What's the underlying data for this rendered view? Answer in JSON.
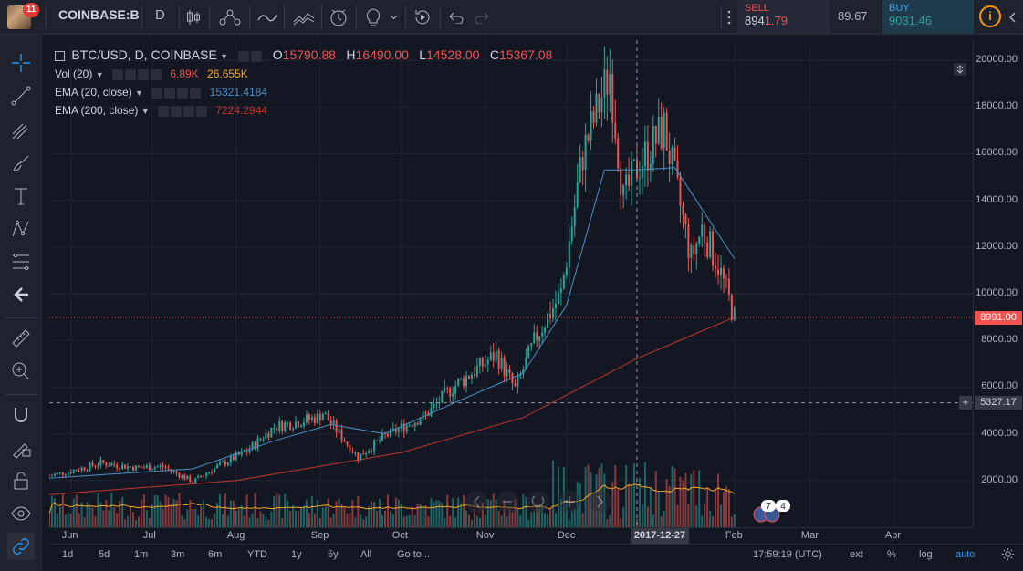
{
  "toolbar": {
    "notification_count": "11",
    "symbol": "COINBASE:B",
    "interval": "D",
    "trade": {
      "sell_label": "SELL",
      "sell_price_main": "894",
      "sell_price_tail": "1.79",
      "spread": "89.67",
      "buy_label": "BUY",
      "buy_price": "9031.46"
    },
    "info_icon": "i"
  },
  "left_tools": [
    "crosshair-icon",
    "trendline-icon",
    "pitchfork-icon",
    "brush-icon",
    "text-icon",
    "pattern-icon",
    "fib-icon",
    "back-arrow-icon",
    "ruler-icon",
    "zoom-icon",
    "magnet-icon",
    "lock-draw-icon",
    "lock-icon",
    "eye-icon",
    "link-icon"
  ],
  "legend": {
    "title": "BTC/USD, D, COINBASE",
    "ohlc": {
      "o_label": "O",
      "o": "15790.88",
      "h_label": "H",
      "h": "16490.00",
      "l_label": "L",
      "l": "14528.00",
      "c_label": "C",
      "c": "15367.08"
    },
    "vol": {
      "label": "Vol (20)",
      "v1": "6.89K",
      "v2": "26.655K"
    },
    "ema20": {
      "label": "EMA (20, close)",
      "value": "15321.4184"
    },
    "ema200": {
      "label": "EMA (200, close)",
      "value": "7224.2944"
    }
  },
  "price_axis": {
    "ticks": [
      "20000.00",
      "18000.00",
      "16000.00",
      "14000.00",
      "12000.00",
      "10000.00",
      "8000.00",
      "6000.00",
      "4000.00",
      "2000.00"
    ],
    "last_price": "8991.00",
    "crosshair_price": "5327.17",
    "plus": "+"
  },
  "time_axis": {
    "ticks": [
      "Jun",
      "Jul",
      "Aug",
      "Sep",
      "Oct",
      "Nov",
      "Dec",
      "Feb",
      "Mar",
      "Apr"
    ],
    "crosshair_date": "2017-12-27"
  },
  "events": {
    "badge_a": "7",
    "badge_b": "4"
  },
  "bottom_bar": {
    "ranges": [
      "1d",
      "5d",
      "1m",
      "3m",
      "6m",
      "YTD",
      "1y",
      "5y",
      "All"
    ],
    "goto": "Go to...",
    "clock": "17:59:19 (UTC)",
    "ext": "ext",
    "percent": "%",
    "log": "log",
    "auto": "auto"
  },
  "colors": {
    "up": "#26a69a",
    "down": "#ef5350",
    "ema20": "#4a90c8",
    "ema200": "#c0392b",
    "vol_ma": "#f5a623",
    "background": "#131722"
  },
  "chart_data": {
    "type": "candlestick",
    "symbol": "BTC/USD",
    "y_range": [
      0,
      21000
    ],
    "y_ticks": [
      2000,
      4000,
      6000,
      8000,
      10000,
      12000,
      14000,
      16000,
      18000,
      20000
    ],
    "x_range": [
      "2017-05-24",
      "2018-04-30"
    ],
    "x_ticks": [
      "Jun",
      "Jul",
      "Aug",
      "Sep",
      "Oct",
      "Nov",
      "Dec",
      "Feb",
      "Mar",
      "Apr"
    ],
    "last_close": 8991,
    "crosshair": {
      "date": "2017-12-27",
      "price": 5327.17
    },
    "close_path": [
      [
        "2017-05-24",
        2200
      ],
      [
        "2017-06-01",
        2400
      ],
      [
        "2017-06-12",
        2750
      ],
      [
        "2017-06-25",
        2550
      ],
      [
        "2017-07-05",
        2600
      ],
      [
        "2017-07-16",
        1950
      ],
      [
        "2017-07-25",
        2600
      ],
      [
        "2017-08-05",
        3250
      ],
      [
        "2017-08-15",
        4300
      ],
      [
        "2017-08-31",
        4700
      ],
      [
        "2017-09-02",
        4900
      ],
      [
        "2017-09-15",
        3000
      ],
      [
        "2017-09-25",
        3900
      ],
      [
        "2017-10-10",
        4800
      ],
      [
        "2017-10-20",
        6000
      ],
      [
        "2017-11-05",
        7400
      ],
      [
        "2017-11-12",
        5900
      ],
      [
        "2017-11-20",
        8200
      ],
      [
        "2017-11-29",
        10000
      ],
      [
        "2017-12-07",
        16000
      ],
      [
        "2017-12-17",
        19500
      ],
      [
        "2017-12-22",
        14000
      ],
      [
        "2017-12-27",
        15400
      ],
      [
        "2018-01-06",
        17100
      ],
      [
        "2018-01-16",
        11500
      ],
      [
        "2018-01-20",
        12800
      ],
      [
        "2018-01-26",
        11200
      ],
      [
        "2018-02-01",
        8991
      ]
    ],
    "ema20_path": [
      [
        "2017-05-24",
        2100
      ],
      [
        "2017-07-16",
        2500
      ],
      [
        "2017-08-15",
        3700
      ],
      [
        "2017-09-05",
        4400
      ],
      [
        "2017-09-25",
        4000
      ],
      [
        "2017-10-20",
        5300
      ],
      [
        "2017-11-15",
        6600
      ],
      [
        "2017-12-01",
        9500
      ],
      [
        "2017-12-15",
        15300
      ],
      [
        "2017-12-27",
        15300
      ],
      [
        "2018-01-10",
        15400
      ],
      [
        "2018-02-01",
        11500
      ]
    ],
    "ema200_path": [
      [
        "2017-05-24",
        1400
      ],
      [
        "2017-08-01",
        2000
      ],
      [
        "2017-10-01",
        3200
      ],
      [
        "2017-11-15",
        4700
      ],
      [
        "2017-12-27",
        7224
      ],
      [
        "2018-02-01",
        8991
      ]
    ]
  }
}
